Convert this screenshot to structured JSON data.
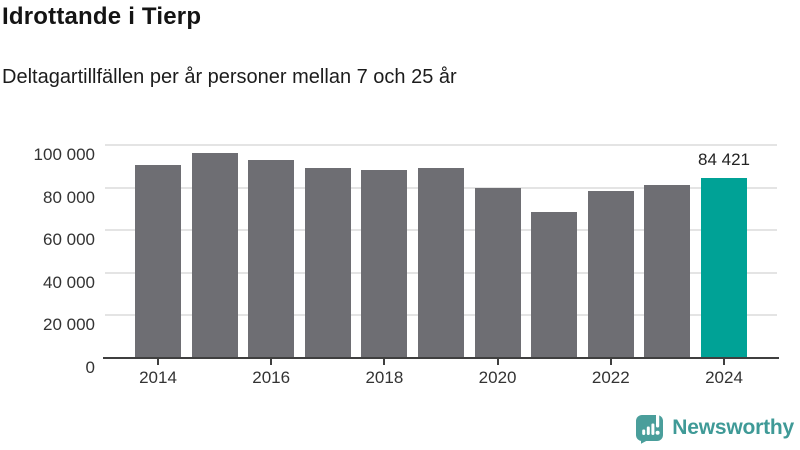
{
  "header": {
    "title": "Idrottande i Tierp",
    "subtitle": "Deltagartillfällen per år personer mellan 7 och 25 år"
  },
  "chart_data": {
    "type": "bar",
    "categories": [
      "2014",
      "2015",
      "2016",
      "2017",
      "2018",
      "2019",
      "2020",
      "2021",
      "2022",
      "2023",
      "2024"
    ],
    "values": [
      90500,
      96400,
      93000,
      89000,
      88100,
      89200,
      79800,
      68500,
      78200,
      81300,
      84421
    ],
    "highlight_index": 10,
    "highlight_label": "84 421",
    "title": "Idrottande i Tierp",
    "xlabel": "",
    "ylabel": "",
    "ylim": [
      0,
      100000
    ],
    "yticks": [
      0,
      20000,
      40000,
      60000,
      80000,
      100000
    ],
    "ytick_labels": [
      "0",
      "20 000",
      "40 000",
      "60 000",
      "80 000",
      "100 000"
    ],
    "xtick_labels": [
      "2014",
      "2016",
      "2018",
      "2020",
      "2022",
      "2024"
    ],
    "grid": "horizontal",
    "legend": "none",
    "colors": {
      "bar": "#6e6e73",
      "highlight": "#00a296",
      "gridline": "#e4e4e4",
      "axis": "#3f3f3f",
      "axis_text": "#333333"
    }
  },
  "footer": {
    "brand": "Newsworthy",
    "brand_color": "#3f9a97",
    "logo_icon": "bar-chart-speech-bubble-icon",
    "logo_color": "#4a9e9b"
  }
}
